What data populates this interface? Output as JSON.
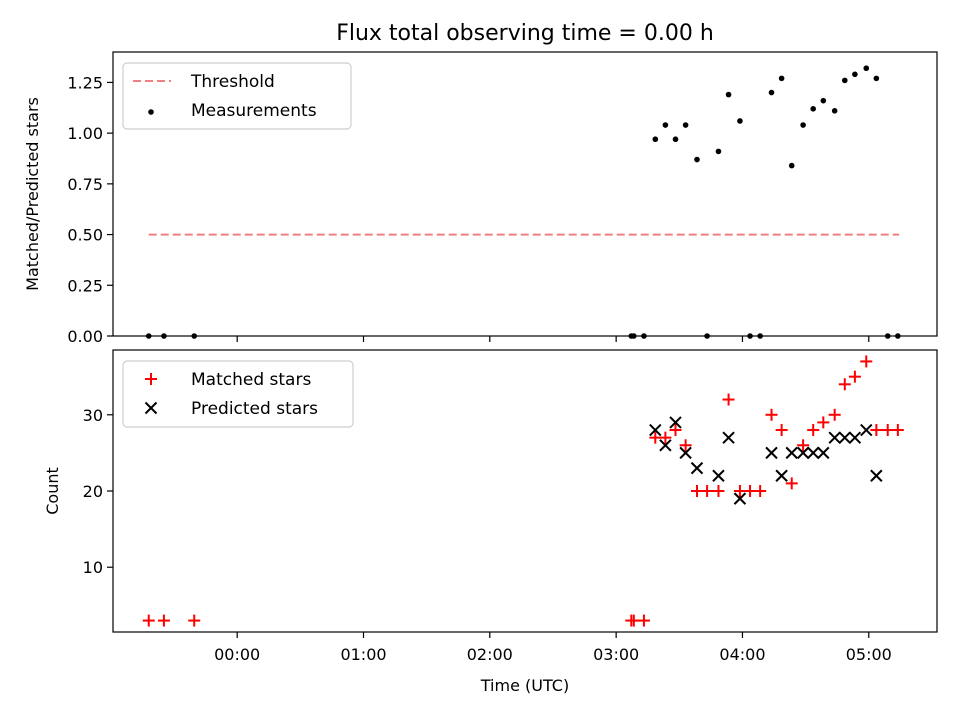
{
  "chart_data": [
    {
      "type": "scatter",
      "title": "Flux total observing time = 0.00 h",
      "xlabel": "",
      "ylabel": "Matched/Predicted stars",
      "ylim": [
        0,
        1.4
      ],
      "xlim_hours": [
        -0.983,
        5.54
      ],
      "yticks": [
        {
          "value": 0.0,
          "label": "0.00"
        },
        {
          "value": 0.25,
          "label": "0.25"
        },
        {
          "value": 0.5,
          "label": "0.50"
        },
        {
          "value": 0.75,
          "label": "0.75"
        },
        {
          "value": 1.0,
          "label": "1.00"
        },
        {
          "value": 1.25,
          "label": "1.25"
        }
      ],
      "legend_position": "top-left",
      "series": [
        {
          "name": "Threshold",
          "kind": "line",
          "style": "dashed",
          "color": "#f08080",
          "x": [
            -0.7,
            5.24
          ],
          "y": [
            0.5,
            0.5
          ]
        },
        {
          "name": "Measurements",
          "kind": "scatter",
          "marker": "dot",
          "color": "#000000",
          "x": [
            -0.7,
            -0.58,
            -0.34,
            3.12,
            3.14,
            3.22,
            3.31,
            3.39,
            3.47,
            3.55,
            3.64,
            3.72,
            3.81,
            3.89,
            3.98,
            4.06,
            4.14,
            4.23,
            4.31,
            4.39,
            4.48,
            4.56,
            4.64,
            4.73,
            4.81,
            4.89,
            4.98,
            5.06,
            5.15,
            5.23
          ],
          "y": [
            0.0,
            0.0,
            0.0,
            0.0,
            0.0,
            0.0,
            0.97,
            1.04,
            0.97,
            1.04,
            0.87,
            0.0,
            0.91,
            1.19,
            1.06,
            0.0,
            0.0,
            1.2,
            1.27,
            0.84,
            1.04,
            1.12,
            1.16,
            1.11,
            1.26,
            1.29,
            1.32,
            1.27,
            0.0,
            0.0
          ]
        }
      ]
    },
    {
      "type": "scatter",
      "title": "",
      "xlabel": "Time (UTC)",
      "ylabel": "Count",
      "ylim": [
        1.5,
        38.5
      ],
      "xlim_hours": [
        -0.983,
        5.54
      ],
      "yticks": [
        {
          "value": 10,
          "label": "10"
        },
        {
          "value": 20,
          "label": "20"
        },
        {
          "value": 30,
          "label": "30"
        }
      ],
      "xticks": [
        {
          "value": 0,
          "label": "00:00"
        },
        {
          "value": 1,
          "label": "01:00"
        },
        {
          "value": 2,
          "label": "02:00"
        },
        {
          "value": 3,
          "label": "03:00"
        },
        {
          "value": 4,
          "label": "04:00"
        },
        {
          "value": 5,
          "label": "05:00"
        }
      ],
      "legend_position": "top-left",
      "series": [
        {
          "name": "Matched stars",
          "kind": "scatter",
          "marker": "plus",
          "color": "#ff0000",
          "x": [
            -0.7,
            -0.58,
            -0.34,
            3.12,
            3.14,
            3.22,
            3.31,
            3.39,
            3.47,
            3.55,
            3.64,
            3.72,
            3.81,
            3.89,
            3.98,
            4.06,
            4.14,
            4.23,
            4.31,
            4.39,
            4.48,
            4.56,
            4.64,
            4.73,
            4.81,
            4.89,
            4.98,
            5.06,
            5.15,
            5.23
          ],
          "y": [
            3,
            3,
            3,
            3,
            3,
            3,
            27,
            27,
            28,
            26,
            20,
            20,
            20,
            32,
            20,
            20,
            20,
            30,
            28,
            21,
            26,
            28,
            29,
            30,
            34,
            35,
            37,
            28,
            28,
            28
          ]
        },
        {
          "name": "Predicted stars",
          "kind": "scatter",
          "marker": "x",
          "color": "#000000",
          "x": [
            3.31,
            3.39,
            3.47,
            3.55,
            3.64,
            3.81,
            3.89,
            3.98,
            4.23,
            4.31,
            4.39,
            4.48,
            4.56,
            4.64,
            4.73,
            4.81,
            4.89,
            4.98,
            5.06
          ],
          "y": [
            28,
            26,
            29,
            25,
            23,
            22,
            27,
            19,
            25,
            22,
            25,
            25,
            25,
            25,
            27,
            27,
            27,
            28,
            22
          ]
        }
      ]
    }
  ]
}
